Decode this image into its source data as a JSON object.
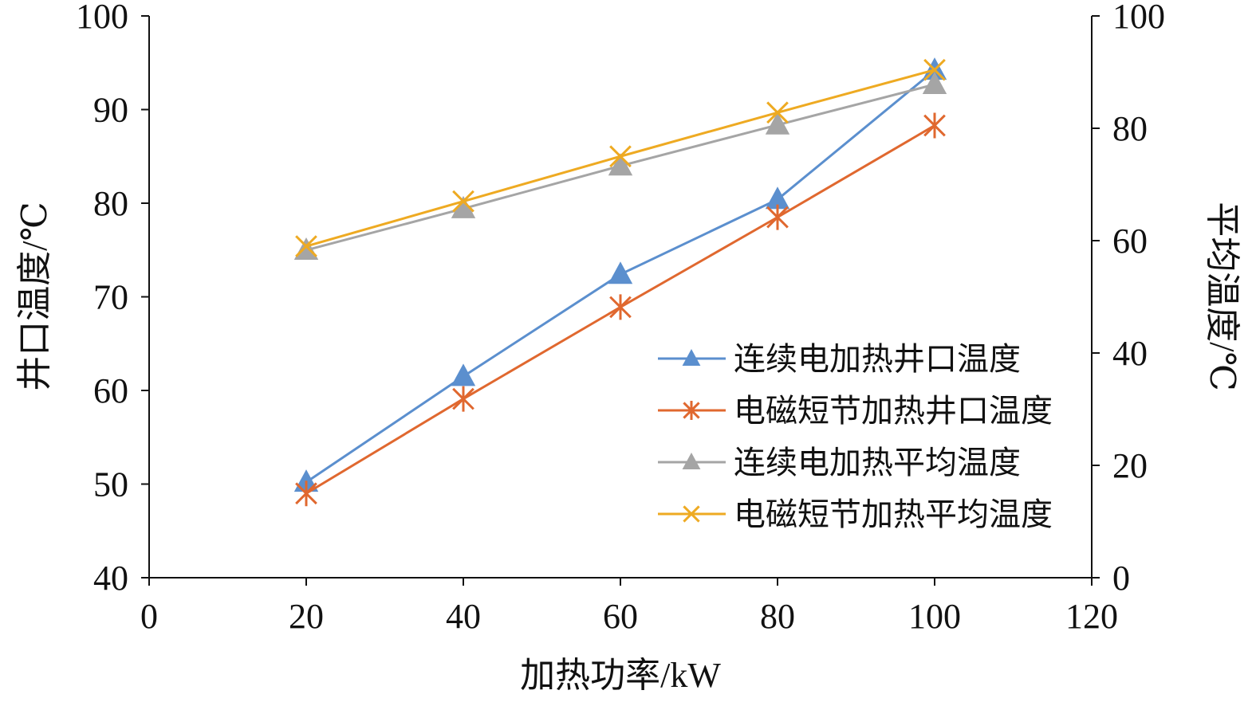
{
  "chart_data": {
    "type": "line",
    "title": "",
    "xlabel": "加热功率/kW",
    "ylabel": "井口温度/℃",
    "y2label": "平均温度/℃",
    "xlim": [
      0,
      120
    ],
    "ylim": [
      40,
      100
    ],
    "y2lim": [
      0,
      100
    ],
    "xticks": [
      0,
      20,
      40,
      60,
      80,
      100,
      120
    ],
    "yticks": [
      40,
      50,
      60,
      70,
      80,
      90,
      100
    ],
    "y2ticks": [
      0,
      20,
      40,
      60,
      80,
      100
    ],
    "grid": false,
    "legend_position": "right-center",
    "x": [
      20,
      40,
      60,
      80,
      100
    ],
    "series": [
      {
        "name": "连续电加热井口温度",
        "axis": "left",
        "color": "#5b8fce",
        "marker": "triangle",
        "values": [
          50.2,
          61.5,
          72.4,
          80.4,
          94.2
        ]
      },
      {
        "name": "电磁短节加热井口温度",
        "axis": "left",
        "color": "#e0682f",
        "marker": "asterisk",
        "values": [
          49.0,
          59.1,
          68.9,
          78.5,
          88.3
        ]
      },
      {
        "name": "连续电加热平均温度",
        "axis": "right",
        "color": "#a5a5a5",
        "marker": "triangle",
        "values": [
          58.3,
          65.7,
          73.3,
          80.6,
          87.8
        ]
      },
      {
        "name": "电磁短节加热平均温度",
        "axis": "right",
        "color": "#eeaa22",
        "marker": "x",
        "values": [
          59.0,
          67.0,
          75.0,
          82.8,
          90.4
        ]
      }
    ]
  }
}
